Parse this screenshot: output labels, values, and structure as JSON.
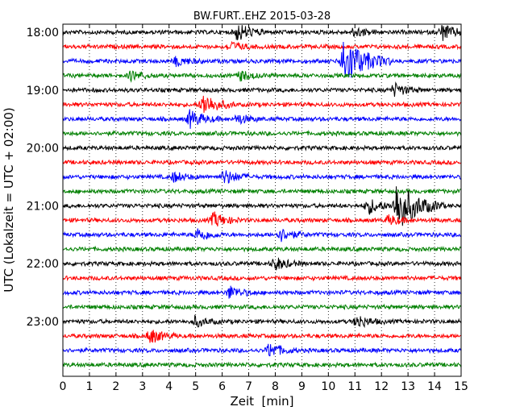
{
  "chart_data": {
    "type": "line",
    "title": "BW.FURT..EHZ 2015-03-28",
    "xlabel": "Zeit  [min]",
    "ylabel": "UTC (Lokalzeit = UTC + 02:00)",
    "xlim": [
      0,
      15
    ],
    "x_ticks": [
      0,
      1,
      2,
      3,
      4,
      5,
      6,
      7,
      8,
      9,
      10,
      11,
      12,
      13,
      14,
      15
    ],
    "y_tick_labels": [
      "18:00",
      "19:00",
      "20:00",
      "21:00",
      "22:00",
      "23:00"
    ],
    "y_tick_rows": [
      0,
      4,
      8,
      12,
      16,
      20
    ],
    "grid": "vertical dotted at each minute",
    "row_minutes": 15,
    "rows": 24,
    "row_colors": [
      "#000000",
      "#ff0000",
      "#0000ff",
      "#008000"
    ],
    "events": [
      {
        "row": 0,
        "minute": 6.6,
        "amp": 1.1
      },
      {
        "row": 0,
        "minute": 14.3,
        "amp": 1.0
      },
      {
        "row": 0,
        "minute": 11.0,
        "amp": 0.6
      },
      {
        "row": 1,
        "minute": 6.3,
        "amp": 0.6
      },
      {
        "row": 2,
        "minute": 10.6,
        "amp": 3.2
      },
      {
        "row": 2,
        "minute": 4.3,
        "amp": 0.6
      },
      {
        "row": 3,
        "minute": 2.6,
        "amp": 0.6
      },
      {
        "row": 3,
        "minute": 6.7,
        "amp": 0.6
      },
      {
        "row": 4,
        "minute": 12.5,
        "amp": 0.8
      },
      {
        "row": 5,
        "minute": 5.3,
        "amp": 1.4
      },
      {
        "row": 6,
        "minute": 4.8,
        "amp": 1.1
      },
      {
        "row": 6,
        "minute": 6.6,
        "amp": 0.6
      },
      {
        "row": 10,
        "minute": 6.1,
        "amp": 0.9
      },
      {
        "row": 10,
        "minute": 4.2,
        "amp": 0.6
      },
      {
        "row": 12,
        "minute": 12.6,
        "amp": 3.2
      },
      {
        "row": 12,
        "minute": 11.5,
        "amp": 1.0
      },
      {
        "row": 13,
        "minute": 5.7,
        "amp": 0.9
      },
      {
        "row": 13,
        "minute": 12.3,
        "amp": 0.6
      },
      {
        "row": 14,
        "minute": 5.1,
        "amp": 0.8
      },
      {
        "row": 14,
        "minute": 8.2,
        "amp": 0.8
      },
      {
        "row": 16,
        "minute": 8.0,
        "amp": 0.8
      },
      {
        "row": 18,
        "minute": 6.3,
        "amp": 0.8
      },
      {
        "row": 20,
        "minute": 11.1,
        "amp": 0.8
      },
      {
        "row": 20,
        "minute": 5.0,
        "amp": 0.6
      },
      {
        "row": 21,
        "minute": 3.3,
        "amp": 0.9
      },
      {
        "row": 22,
        "minute": 7.8,
        "amp": 0.9
      }
    ]
  }
}
